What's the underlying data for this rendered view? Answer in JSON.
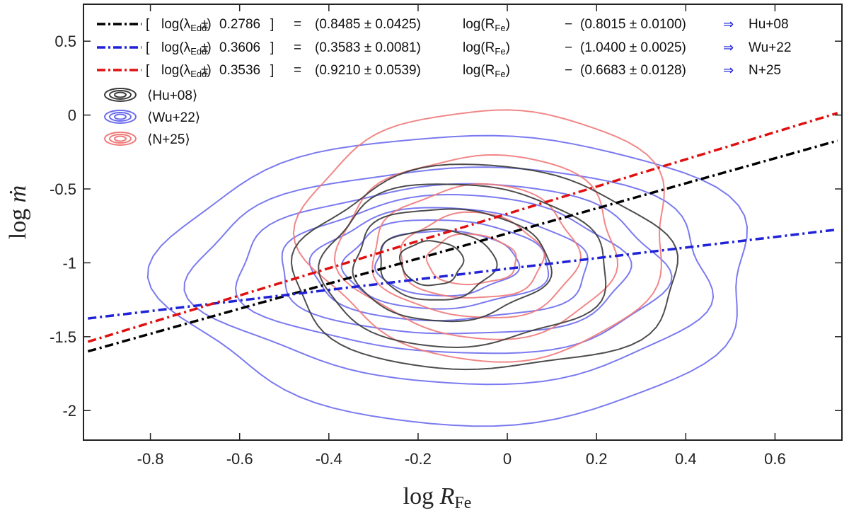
{
  "chart_data": {
    "type": "scatter",
    "xlabel_main": "log",
    "xlabel_var": "R",
    "xlabel_sub": "Fe",
    "ylabel_main": "log",
    "ylabel_var": "ṁ",
    "xlim": [
      -0.95,
      0.75
    ],
    "ylim": [
      -2.2,
      0.75
    ],
    "xticks": [
      -0.8,
      -0.6,
      -0.4,
      -0.2,
      0,
      0.2,
      0.4,
      0.6
    ],
    "xtick_labels": [
      "-0.8",
      "-0.6",
      "-0.4",
      "-0.2",
      "0",
      "0.2",
      "0.4",
      "0.6"
    ],
    "yticks": [
      0.5,
      0,
      -0.5,
      -1,
      -1.5,
      -2
    ],
    "ytick_labels": [
      "0.5",
      "0",
      "-0.5",
      "-1",
      "-1.5",
      "-2"
    ],
    "legend_position": "top-left",
    "lines": [
      {
        "name": "Hu+08",
        "color": "#000000",
        "slope": 0.8485,
        "intercept": -0.8015,
        "x_range": [
          -0.94,
          0.74
        ],
        "legend": {
          "open": "[",
          "lhs": "log(λ",
          "lhs_sub": "Edd",
          "lhs_close": ")",
          "pm": "±",
          "scatter": "0.2786",
          "close": "]",
          "eq": "=",
          "coef": "(0.8485 ± 0.0425)",
          "rhs": "log(R",
          "rhs_sub": "Fe",
          "rhs_close": ")",
          "minus": "−",
          "const": "(0.8015 ± 0.0100)",
          "arrow": "⇒",
          "ref": "Hu+08"
        }
      },
      {
        "name": "Wu+22",
        "color": "#1f22d6",
        "slope": 0.3583,
        "intercept": -1.04,
        "x_range": [
          -0.94,
          0.74
        ],
        "legend": {
          "open": "[",
          "lhs": "log(λ",
          "lhs_sub": "Edd",
          "lhs_close": ")",
          "pm": "±",
          "scatter": "0.3606",
          "close": "]",
          "eq": "=",
          "coef": "(0.3583 ± 0.0081)",
          "rhs": "log(R",
          "rhs_sub": "Fe",
          "rhs_close": ")",
          "minus": "−",
          "const": "(1.0400 ± 0.0025)",
          "arrow": "⇒",
          "ref": "Wu+22"
        }
      },
      {
        "name": "N+25",
        "color": "#e01010",
        "slope": 0.921,
        "intercept": -0.6683,
        "x_range": [
          -0.94,
          0.74
        ],
        "legend": {
          "open": "[",
          "lhs": "log(λ",
          "lhs_sub": "Edd",
          "lhs_close": ")",
          "pm": "±",
          "scatter": "0.3536",
          "close": "]",
          "eq": "=",
          "coef": "(0.9210 ± 0.0539)",
          "rhs": "log(R",
          "rhs_sub": "Fe",
          "rhs_close": ")",
          "minus": "−",
          "const": "(0.6683 ± 0.0128)",
          "arrow": "⇒",
          "ref": "N+25"
        }
      }
    ],
    "contour_sets": [
      {
        "name": "⟨Hu+08⟩",
        "color": "#3a3a3a",
        "levels": [
          {
            "cx": -0.17,
            "cy": -1.0,
            "rx": 0.07,
            "ry": 0.15
          },
          {
            "cx": -0.16,
            "cy": -1.01,
            "rx": 0.13,
            "ry": 0.24
          },
          {
            "cx": -0.13,
            "cy": -1.01,
            "rx": 0.22,
            "ry": 0.38
          },
          {
            "cx": -0.1,
            "cy": -1.02,
            "rx": 0.32,
            "ry": 0.55
          },
          {
            "cx": -0.05,
            "cy": -1.05,
            "rx": 0.43,
            "ry": 0.69
          }
        ]
      },
      {
        "name": "⟨Wu+22⟩",
        "color": "#6b6bee",
        "levels": [
          {
            "cx": -0.14,
            "cy": -1.0,
            "rx": 0.16,
            "ry": 0.22
          },
          {
            "cx": -0.14,
            "cy": -1.01,
            "rx": 0.23,
            "ry": 0.3
          },
          {
            "cx": -0.13,
            "cy": -1.02,
            "rx": 0.31,
            "ry": 0.38
          },
          {
            "cx": -0.12,
            "cy": -1.03,
            "rx": 0.39,
            "ry": 0.47
          },
          {
            "cx": -0.12,
            "cy": -1.05,
            "rx": 0.48,
            "ry": 0.57
          },
          {
            "cx": -0.11,
            "cy": -1.08,
            "rx": 0.58,
            "ry": 0.73
          },
          {
            "cx": -0.1,
            "cy": -1.1,
            "rx": 0.66,
            "ry": 0.98
          }
        ]
      },
      {
        "name": "⟨N+25⟩",
        "color": "#f07a7a",
        "levels": [
          {
            "cx": -0.08,
            "cy": -0.98,
            "rx": 0.1,
            "ry": 0.17
          },
          {
            "cx": -0.08,
            "cy": -0.96,
            "rx": 0.16,
            "ry": 0.29
          },
          {
            "cx": -0.07,
            "cy": -0.93,
            "rx": 0.23,
            "ry": 0.45
          },
          {
            "cx": -0.06,
            "cy": -0.89,
            "rx": 0.31,
            "ry": 0.62
          },
          {
            "cx": -0.04,
            "cy": -0.8,
            "rx": 0.41,
            "ry": 0.85
          }
        ]
      }
    ]
  }
}
